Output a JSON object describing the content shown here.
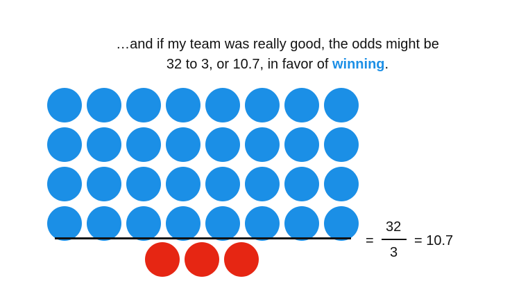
{
  "caption": {
    "line1": "…and if my team was really good, the odds might be",
    "line2_prefix": "32 to 3, or 10.7, in favor of ",
    "line2_highlight": "winning",
    "line2_suffix": "."
  },
  "diagram": {
    "winning_count": 32,
    "losing_count": 3,
    "rows": 4,
    "columns": 8,
    "winning_color": "#1b8fe6",
    "losing_color": "#e62613"
  },
  "equation": {
    "equals1": "=",
    "numerator": "32",
    "denominator": "3",
    "equals2_result": "= 10.7"
  }
}
